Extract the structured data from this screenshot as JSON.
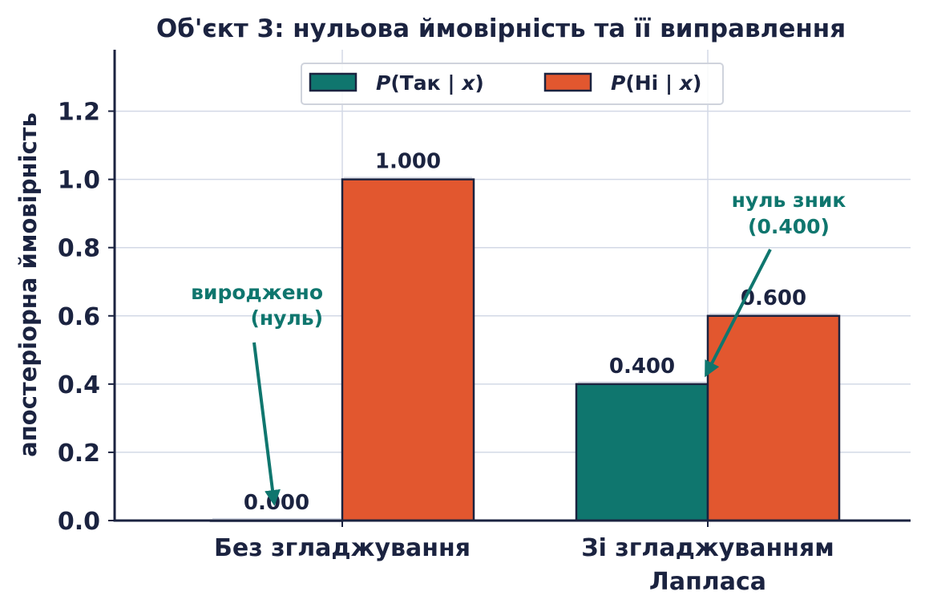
{
  "chart_data": {
    "type": "bar",
    "title": "Об'єкт 3: нульова ймовірність та її виправлення",
    "xlabel": "",
    "ylabel": "апостеріорна ймовірність",
    "categories": [
      [
        "Без згладжування"
      ],
      [
        "Зі згладжуванням",
        "Лапласа"
      ]
    ],
    "series": [
      {
        "name_prefix": "P",
        "name_middle": "(Так | ",
        "name_var": "x",
        "name_suffix": ")",
        "color": "#0f766e",
        "values": [
          0.0,
          0.4
        ],
        "labels": [
          "0.000",
          "0.400"
        ]
      },
      {
        "name_prefix": "P",
        "name_middle": "(Ні | ",
        "name_var": "x",
        "name_suffix": ")",
        "color": "#e2572f",
        "values": [
          1.0,
          0.6
        ],
        "labels": [
          "1.000",
          "0.600"
        ]
      }
    ],
    "ylim": [
      0,
      1.38
    ],
    "yticks": [
      "0.0",
      "0.2",
      "0.4",
      "0.6",
      "0.8",
      "1.0",
      "1.2"
    ],
    "ytick_values": [
      0,
      0.2,
      0.4,
      0.6,
      0.8,
      1.0,
      1.2
    ],
    "grid": true,
    "legend_position": "top-center",
    "annotations": [
      {
        "lines": [
          "вироджено",
          "(нуль)"
        ],
        "category": 0,
        "series": 0
      },
      {
        "lines": [
          "нуль зник",
          "(0.400)"
        ],
        "category": 1,
        "series": 0
      }
    ],
    "colors": {
      "axis": "#1b2340",
      "grid": "#d3d9e6",
      "annotation": "#0f766e",
      "bar_edge": "#1b2340"
    }
  }
}
